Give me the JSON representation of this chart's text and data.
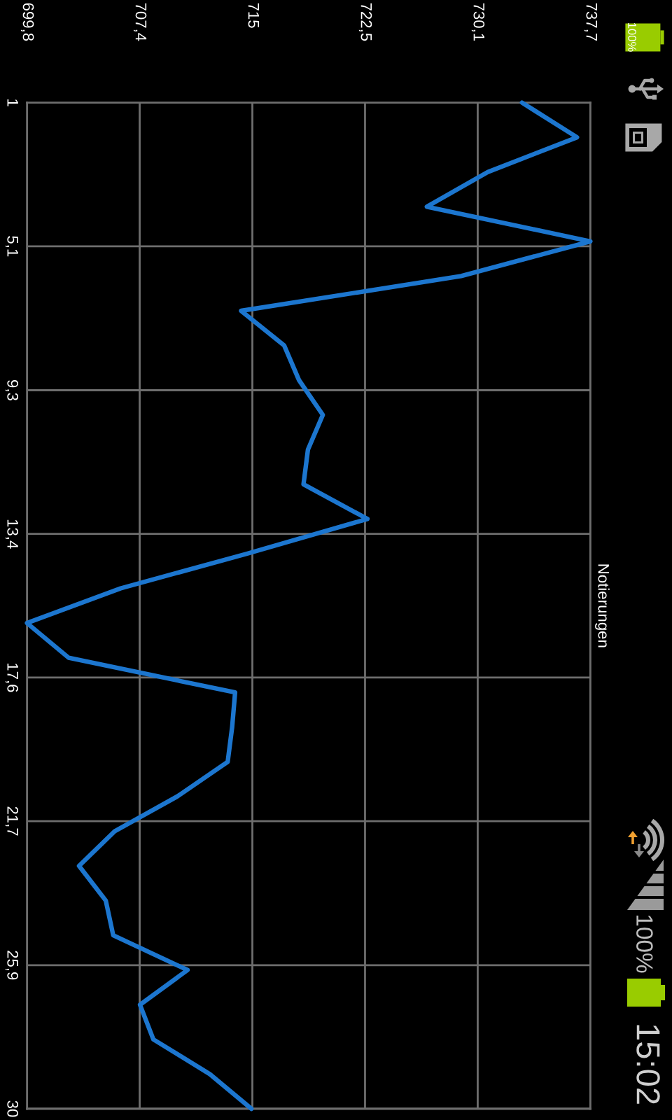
{
  "chart_data": {
    "type": "line",
    "series": [
      {
        "name": "Notierungen",
        "color": "#1c76cf",
        "x": [
          733.1,
          736.8,
          730.8,
          726.7,
          737.7,
          729.0,
          714.2,
          717.1,
          718.1,
          719.7,
          718.7,
          718.4,
          722.7,
          714.6,
          706.1,
          699.8,
          702.6,
          713.8,
          713.6,
          713.3,
          709.9,
          705.7,
          703.3,
          705.1,
          705.6,
          710.6,
          707.4,
          708.3,
          712.1,
          714.9
        ],
        "values": [
          1,
          2,
          3,
          4,
          5,
          6,
          7,
          8,
          9,
          10,
          11,
          12,
          13,
          14,
          15,
          16,
          17,
          18,
          19,
          20,
          21,
          22,
          23,
          24,
          25,
          26,
          27,
          28,
          29,
          30
        ]
      }
    ],
    "xlim": [
      699.8,
      737.7
    ],
    "xticks": [
      {
        "value": 699.8,
        "label": "699,8"
      },
      {
        "value": 707.38,
        "label": "707,4"
      },
      {
        "value": 714.96,
        "label": "715"
      },
      {
        "value": 722.54,
        "label": "722,5"
      },
      {
        "value": 730.12,
        "label": "730,1"
      },
      {
        "value": 737.7,
        "label": "737,7"
      }
    ],
    "ylim": [
      30,
      1
    ],
    "yticks": [
      1,
      {
        "value": 5.14,
        "label": "5,1"
      },
      {
        "value": 9.29,
        "label": "9,3"
      },
      {
        "value": 13.43,
        "label": "13,4"
      },
      {
        "value": 17.57,
        "label": "17,6"
      },
      {
        "value": 21.71,
        "label": "21,7"
      },
      {
        "value": 25.86,
        "label": "25,9"
      },
      30
    ],
    "grid": true,
    "legend": "right",
    "annotations": [
      "100%",
      "100%",
      "15:02"
    ]
  }
}
